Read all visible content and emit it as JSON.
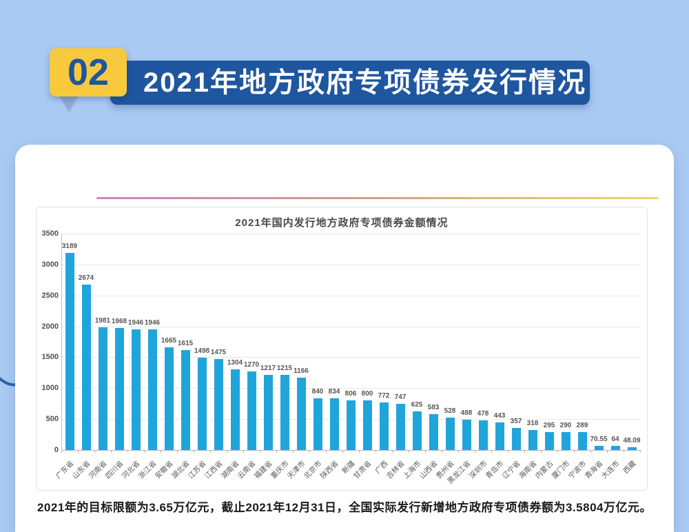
{
  "colors": {
    "background": "#a9caf3",
    "banner_blue": "#1e569f",
    "banner_yellow": "#f7c93d",
    "bar_cyan": "#20a5da",
    "decor_arc": "#2a63a8"
  },
  "banner": {
    "number": "02",
    "title": "2021年地方政府专项债券发行情况"
  },
  "card": {
    "footer_note": "2021年的目标限额为3.65万亿元，截止2021年12月31日，全国实际发行新增地方政府专项债券额为3.5804万亿元。"
  },
  "chart_data": {
    "type": "bar",
    "title": "2021年国内发行地方政府专项债券金额情况",
    "categories": [
      "广东省",
      "山东省",
      "河南省",
      "四川省",
      "河北省",
      "浙江省",
      "安徽省",
      "湖北省",
      "江苏省",
      "江西省",
      "湖南省",
      "云南省",
      "福建省",
      "重庆市",
      "天津市",
      "北京市",
      "陕西省",
      "新疆",
      "甘肃省",
      "广西",
      "吉林省",
      "上海市",
      "山西省",
      "贵州省",
      "黑龙江省",
      "深圳市",
      "青岛市",
      "辽宁省",
      "海南省",
      "内蒙古",
      "厦门市",
      "宁波市",
      "青海省",
      "大连市",
      "西藏"
    ],
    "values": [
      3189,
      2674,
      1981,
      1968,
      1946,
      1946,
      1665,
      1615,
      1498,
      1475,
      1304,
      1270,
      1217,
      1215,
      1166,
      840,
      834,
      806,
      800,
      772,
      747,
      625,
      583,
      528,
      488,
      478,
      443,
      357,
      318,
      295,
      290,
      289,
      70.55,
      64,
      48.09
    ],
    "value_labels": [
      "3189",
      "2674",
      "1981",
      "1968",
      "1946",
      "1946",
      "1665",
      "1615",
      "1498",
      "1475",
      "1304",
      "1270",
      "1217",
      "1215",
      "1166",
      "840",
      "834",
      "806",
      "800",
      "772",
      "747",
      "625",
      "583",
      "528",
      "488",
      "478",
      "443",
      "357",
      "318",
      "295",
      "290",
      "289",
      "70.55",
      "64",
      "48.09"
    ],
    "xlabel": "",
    "ylabel": "",
    "ylim": [
      0,
      3500
    ],
    "yticks": [
      0,
      500,
      1000,
      1500,
      2000,
      2500,
      3000,
      3500
    ],
    "bar_color": "#20a5da",
    "grid": true,
    "legend": false
  }
}
